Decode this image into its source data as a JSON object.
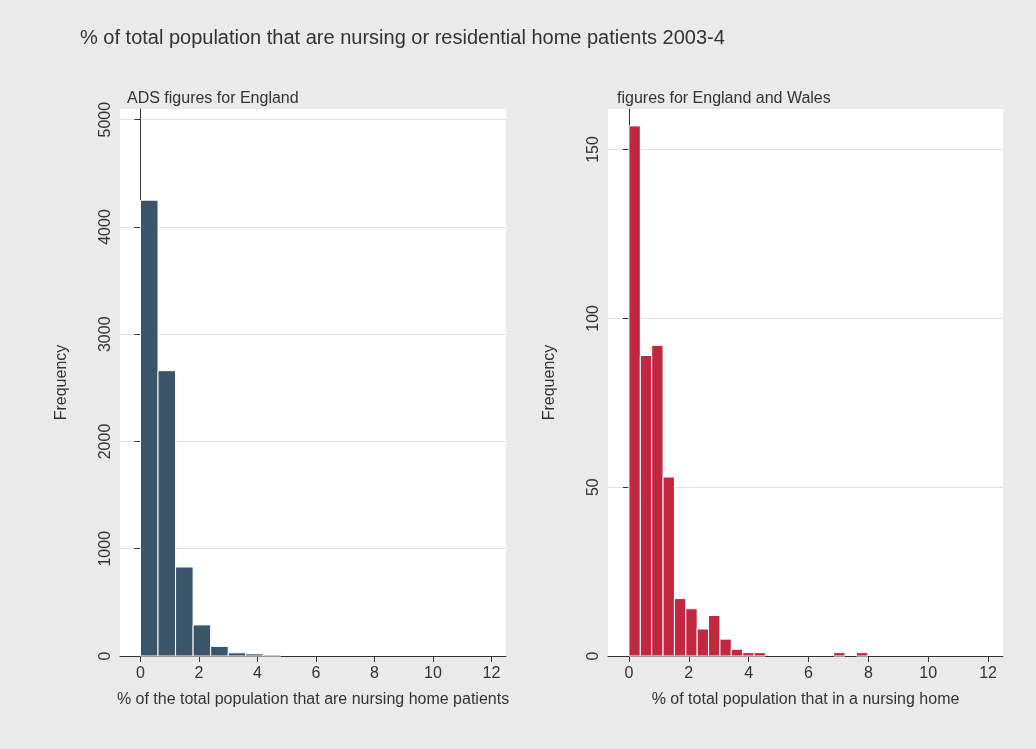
{
  "chart_data": [
    {
      "type": "histogram",
      "title": "% of total population that are nursing or residential home patients 2003-4",
      "subtitle": "ADS figures for England",
      "xlabel": "% of the total population that are nursing home patients",
      "ylabel": "Frequency",
      "color": "#3b5468",
      "bins": [
        0,
        0.6,
        1.2,
        1.8,
        2.4,
        3.0,
        3.6,
        4.2,
        4.8
      ],
      "values": [
        4250,
        2660,
        830,
        290,
        90,
        30,
        20,
        10
      ],
      "xlim": [
        -0.7,
        12.5
      ],
      "xticks": [
        0,
        2,
        4,
        6,
        8,
        10,
        12
      ],
      "ylim": [
        0,
        5100
      ],
      "yticks": [
        0,
        1000,
        2000,
        3000,
        4000,
        5000
      ],
      "grid": "y"
    },
    {
      "type": "histogram",
      "subtitle": "figures for England and Wales",
      "xlabel": "% of total population that in a nursing home",
      "ylabel": "Frequency",
      "color": "#c1283f",
      "bins": [
        0,
        0.38,
        0.76,
        1.14,
        1.52,
        1.9,
        2.28,
        2.66,
        3.04,
        3.42,
        3.8,
        4.18,
        4.56,
        4.94,
        5.32,
        5.7,
        6.08,
        6.46,
        6.84,
        7.22,
        7.6,
        7.98
      ],
      "values": [
        157,
        89,
        92,
        53,
        17,
        14,
        8,
        12,
        5,
        2,
        1,
        1,
        0,
        0,
        0,
        0,
        0,
        0,
        1,
        0,
        1
      ],
      "xlim": [
        -0.7,
        12.5
      ],
      "xticks": [
        0,
        2,
        4,
        6,
        8,
        10,
        12
      ],
      "ylim": [
        0,
        162
      ],
      "yticks": [
        0,
        50,
        100,
        150
      ],
      "grid": "y"
    }
  ]
}
